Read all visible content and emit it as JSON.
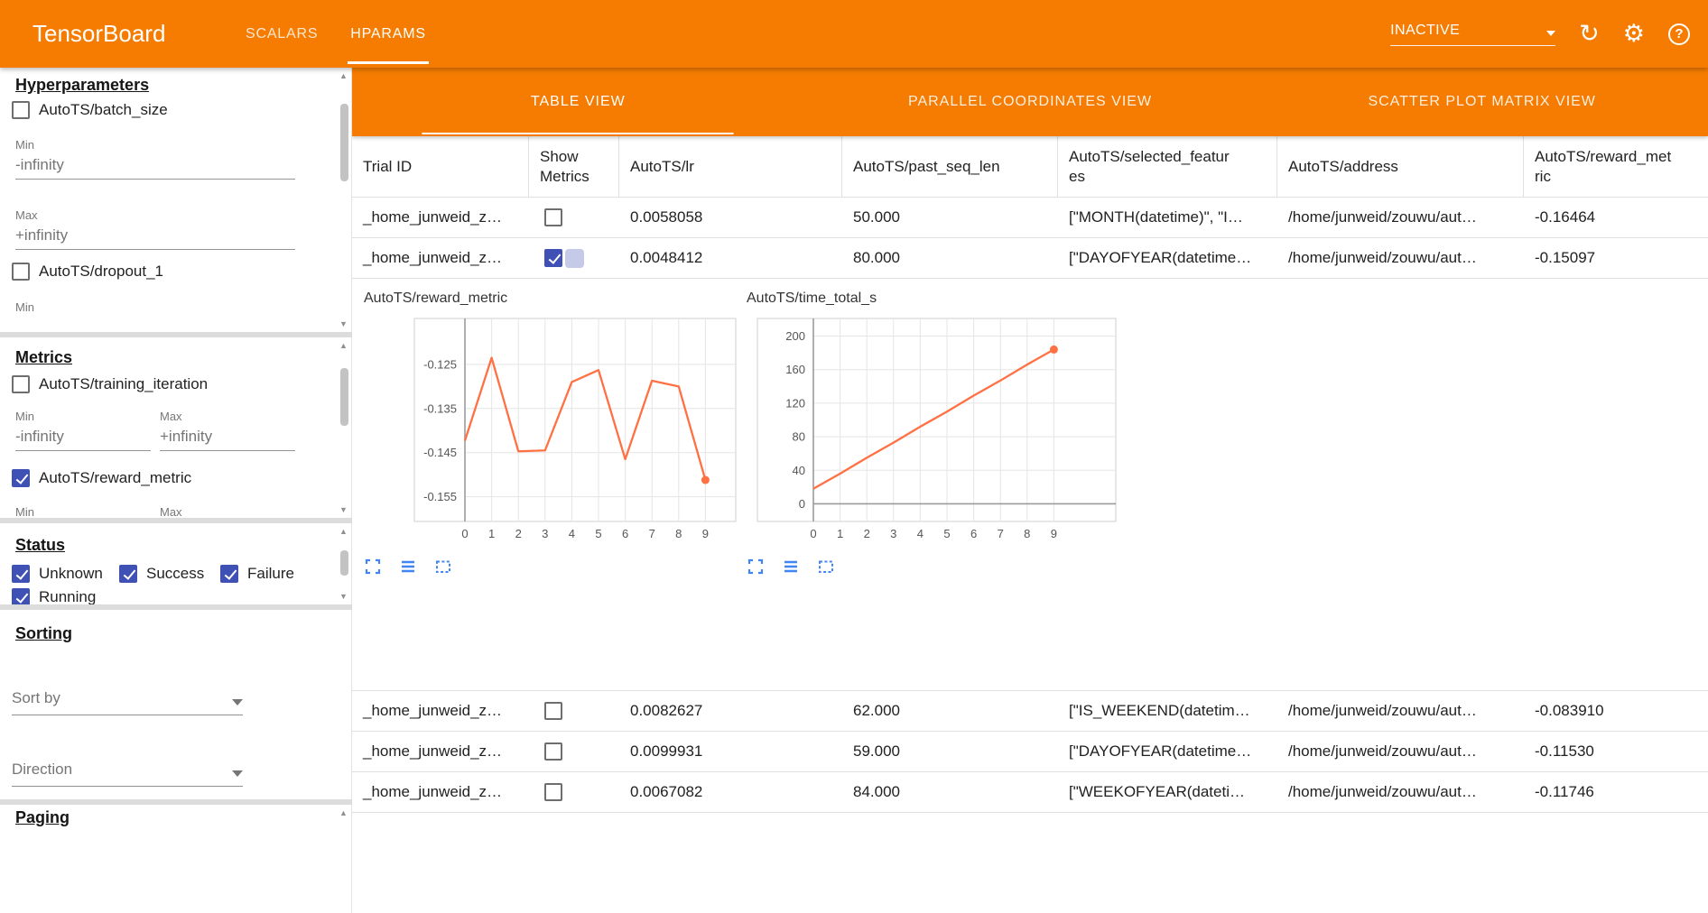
{
  "topbar": {
    "title": "TensorBoard",
    "tabs": [
      {
        "label": "SCALARS",
        "active": false
      },
      {
        "label": "HPARAMS",
        "active": true
      }
    ],
    "status_dropdown": {
      "value": "INACTIVE"
    },
    "icons": [
      "reload-icon",
      "settings-icon",
      "help-icon"
    ],
    "help_glyph": "?",
    "reload_glyph": "↻",
    "settings_glyph": "⚙"
  },
  "sidebar": {
    "hyperparameters": {
      "title": "Hyperparameters",
      "param1": {
        "label": "AutoTS/batch_size",
        "checked": false
      },
      "min_label": "Min",
      "min_value": "-infinity",
      "max_label": "Max",
      "max_value": "+infinity",
      "param2": {
        "label": "AutoTS/dropout_1",
        "checked": false
      },
      "partial_min_label": "Min"
    },
    "metrics": {
      "title": "Metrics",
      "metric1": {
        "label": "AutoTS/training_iteration",
        "checked": false
      },
      "min_label": "Min",
      "min_value": "-infinity",
      "max_label": "Max",
      "max_value": "+infinity",
      "metric2": {
        "label": "AutoTS/reward_metric",
        "checked": true
      },
      "partial_min_label": "Min",
      "partial_max_label": "Max"
    },
    "status": {
      "title": "Status",
      "options": [
        {
          "label": "Unknown",
          "checked": true
        },
        {
          "label": "Success",
          "checked": true
        },
        {
          "label": "Failure",
          "checked": true
        },
        {
          "label": "Running",
          "checked": true
        }
      ]
    },
    "sorting": {
      "title": "Sorting",
      "sort_by_placeholder": "Sort by",
      "direction_placeholder": "Direction"
    },
    "paging": {
      "title": "Paging"
    }
  },
  "main": {
    "view_tabs": [
      {
        "label": "TABLE VIEW",
        "active": true
      },
      {
        "label": "PARALLEL COORDINATES VIEW",
        "active": false
      },
      {
        "label": "SCATTER PLOT MATRIX VIEW",
        "active": false
      }
    ],
    "table": {
      "columns": [
        "Trial ID",
        "Show Metrics",
        "AutoTS/lr",
        "AutoTS/past_seq_len",
        "AutoTS/selected_features",
        "AutoTS/address",
        "AutoTS/reward_metric"
      ],
      "rows_above": [
        {
          "trial_id": "_home_junweid_z…",
          "show_metrics": false,
          "lr": "0.0058058",
          "past_seq_len": "50.000",
          "selected_features": "[\"MONTH(datetime)\", \"I…",
          "address": "/home/junweid/zouwu/aut…",
          "reward_metric": "-0.16464"
        },
        {
          "trial_id": "_home_junweid_z…",
          "show_metrics": true,
          "lr": "0.0048412",
          "past_seq_len": "80.000",
          "selected_features": "[\"DAYOFYEAR(datetime…",
          "address": "/home/junweid/zouwu/aut…",
          "reward_metric": "-0.15097"
        }
      ],
      "rows_below": [
        {
          "trial_id": "_home_junweid_z…",
          "show_metrics": false,
          "lr": "0.0082627",
          "past_seq_len": "62.000",
          "selected_features": "[\"IS_WEEKEND(datetim…",
          "address": "/home/junweid/zouwu/aut…",
          "reward_metric": "-0.083910"
        },
        {
          "trial_id": "_home_junweid_z…",
          "show_metrics": false,
          "lr": "0.0099931",
          "past_seq_len": "59.000",
          "selected_features": "[\"DAYOFYEAR(datetime…",
          "address": "/home/junweid/zouwu/aut…",
          "reward_metric": "-0.11530"
        },
        {
          "trial_id": "_home_junweid_z…",
          "show_metrics": false,
          "lr": "0.0067082",
          "past_seq_len": "84.000",
          "selected_features": "[\"WEEKOFYEAR(dateti…",
          "address": "/home/junweid/zouwu/aut…",
          "reward_metric": "-0.11746"
        }
      ]
    },
    "chart_toolbar_icons": [
      "fullscreen-icon",
      "list-icon",
      "selection-icon"
    ]
  },
  "chart_data": [
    {
      "type": "line",
      "title": "AutoTS/reward_metric",
      "x": [
        0,
        1,
        2,
        3,
        4,
        5,
        6,
        7,
        8,
        9
      ],
      "y": [
        -0.1423,
        -0.1235,
        -0.1447,
        -0.1445,
        -0.129,
        -0.1263,
        -0.1465,
        -0.1287,
        -0.13,
        -0.1512
      ],
      "xticks": [
        0,
        1,
        2,
        3,
        4,
        5,
        6,
        7,
        8,
        9
      ],
      "yticks": [
        -0.125,
        -0.135,
        -0.145,
        -0.155
      ],
      "ytick_labels": [
        "-0.125",
        "-0.135",
        "-0.145",
        "-0.155"
      ],
      "xlim": [
        0,
        10.8
      ],
      "ylim": [
        -0.1606,
        -0.1146
      ],
      "grid": true,
      "legend": "none",
      "line_color": "#ff7043",
      "endpoint_marker": true,
      "zero_line": false
    },
    {
      "type": "line",
      "title": "AutoTS/time_total_s",
      "x": [
        0,
        1,
        2,
        3,
        4,
        5,
        6,
        7,
        8,
        9
      ],
      "y": [
        18,
        36,
        55,
        73,
        92,
        110,
        129,
        147,
        166,
        184
      ],
      "xticks": [
        0,
        1,
        2,
        3,
        4,
        5,
        6,
        7,
        8,
        9
      ],
      "yticks": [
        0,
        40,
        80,
        120,
        160,
        200
      ],
      "ytick_labels": [
        "0",
        "40",
        "80",
        "120",
        "160",
        "200"
      ],
      "xlim": [
        0,
        10.8
      ],
      "ylim": [
        -21,
        221
      ],
      "grid": true,
      "legend": "none",
      "line_color": "#ff7043",
      "endpoint_marker": true,
      "zero_line": true
    }
  ],
  "colors": {
    "brand_orange": "#f57c00",
    "checkbox_blue": "#3f51b5",
    "chart_icon_blue": "#4285f4",
    "chart_line": "#ff7043"
  }
}
